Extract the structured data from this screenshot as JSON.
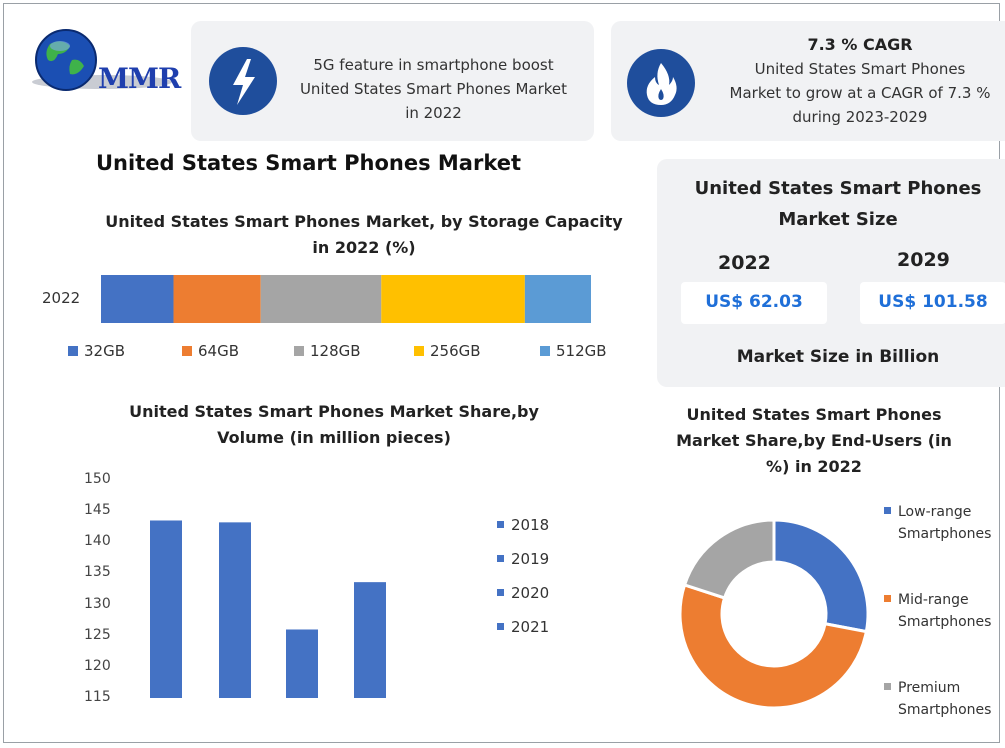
{
  "brand": {
    "logo_text": "MMR"
  },
  "colors": {
    "blue": "#4472c4",
    "orange": "#ed7d31",
    "gray": "#a5a5a5",
    "yellow": "#ffc000",
    "light_blue": "#5b9bd5",
    "icon_bg": "#1f4e9c",
    "value_text": "#1f6fd8"
  },
  "info_cards": [
    {
      "icon": "lightning-icon",
      "line1": "5G feature in smartphone boost",
      "line2": "United States Smart Phones Market",
      "line3": "in 2022"
    },
    {
      "icon": "flame-icon",
      "title": "7.3 % CAGR",
      "line1": "United States Smart Phones",
      "line2": "Market to grow at a CAGR of 7.3 %",
      "line3": "during 2023-2029"
    }
  ],
  "main_title": "United States Smart Phones Market",
  "market_size": {
    "title_line1": "United States Smart Phones",
    "title_line2": "Market Size",
    "year1": "2022",
    "year2": "2029",
    "value1": "US$ 62.03",
    "value2": "US$ 101.58",
    "footer": "Market Size in Billion"
  },
  "chart_data": [
    {
      "type": "bar",
      "orientation": "horizontal-stacked",
      "title": "United States Smart Phones Market, by Storage Capacity in 2022 (%)",
      "title_line1": "United States Smart Phones Market, by Storage Capacity",
      "title_line2": "in 2022 (%)",
      "categories": [
        "2022"
      ],
      "series": [
        {
          "name": "32GB",
          "values": [
            14.8
          ],
          "color": "#4472c4"
        },
        {
          "name": "64GB",
          "values": [
            17.8
          ],
          "color": "#ed7d31"
        },
        {
          "name": "128GB",
          "values": [
            24.6
          ],
          "color": "#a5a5a5"
        },
        {
          "name": "256GB",
          "values": [
            29.3
          ],
          "color": "#ffc000"
        },
        {
          "name": "512GB",
          "values": [
            13.5
          ],
          "color": "#5b9bd5"
        }
      ],
      "legend": "bottom"
    },
    {
      "type": "bar",
      "title": "United States Smart Phones Market Share,by Volume (in million pieces)",
      "title_line1": "United States Smart Phones Market Share,by",
      "title_line2": "Volume (in million pieces)",
      "categories": [
        "2018",
        "2019",
        "2020",
        "2021"
      ],
      "values": [
        143.5,
        143.2,
        126,
        133.6
      ],
      "ylim": [
        115,
        150
      ],
      "yticks": [
        150,
        145,
        140,
        135,
        130,
        125,
        120,
        115
      ],
      "legend": "right",
      "color": "#4472c4"
    },
    {
      "type": "pie",
      "variant": "donut",
      "title": "United States Smart Phones Market Share,by End-Users (in %) in 2022",
      "title_line1": "United States Smart Phones",
      "title_line2": "Market Share,by End-Users (in",
      "title_line3": "%) in 2022",
      "labels": [
        "Low-range Smartphones",
        "Mid-range Smartphones",
        "Premium Smartphones"
      ],
      "legend_lines": [
        [
          "Low-range",
          "Smartphones"
        ],
        [
          "Mid-range",
          "Smartphones"
        ],
        [
          "Premium",
          "Smartphones"
        ]
      ],
      "values": [
        28,
        52,
        20
      ],
      "colors": [
        "#4472c4",
        "#ed7d31",
        "#a5a5a5"
      ],
      "legend": "right"
    }
  ]
}
